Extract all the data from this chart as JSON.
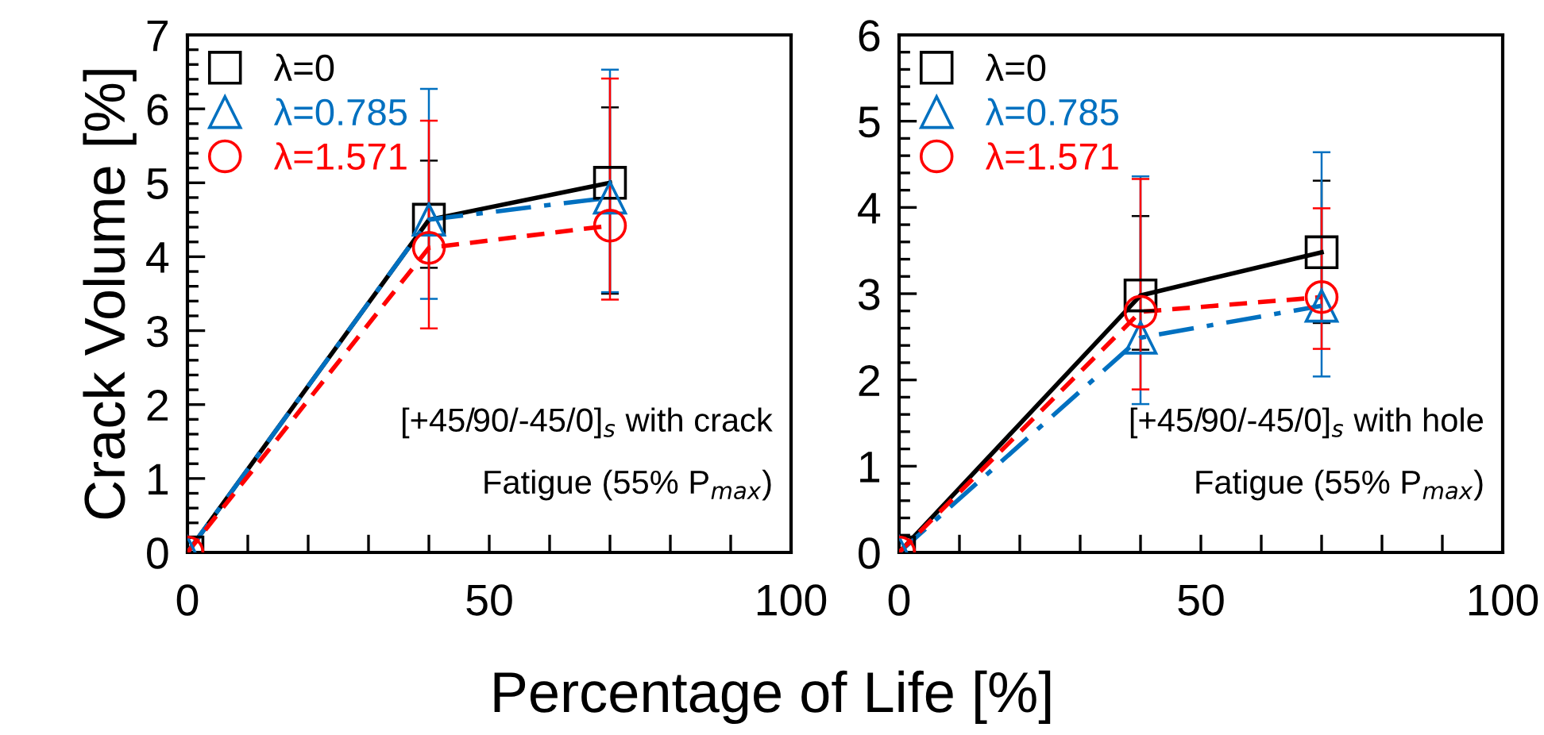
{
  "chart_data": [
    {
      "type": "line",
      "xlabel": "Percentage of Life [%]",
      "ylabel": "Crack Volume [%]",
      "x": [
        0,
        40,
        70
      ],
      "xlim": [
        0,
        100
      ],
      "xticks": [
        0,
        {
          "value": 10,
          "label": null
        },
        {
          "value": 20,
          "label": null
        },
        {
          "value": 30,
          "label": null
        },
        {
          "value": 40,
          "label": null
        },
        50,
        {
          "value": 60,
          "label": null
        },
        {
          "value": 70,
          "label": null
        },
        {
          "value": 80,
          "label": null
        },
        {
          "value": 90,
          "label": null
        },
        100
      ],
      "ylim": [
        0,
        7
      ],
      "yticks": [
        0,
        1,
        2,
        3,
        4,
        5,
        6,
        7
      ],
      "legend": "top left",
      "grid": false,
      "annotations": [
        "[+45/90/-45/0]$_{s}$ with crack",
        "Fatigue (55% P$_{max}$)"
      ],
      "series": [
        {
          "name": "λ=0",
          "color": "#000000",
          "marker": "square",
          "line_style": "solid",
          "values": [
            0,
            4.5,
            5.0
          ],
          "errors": [
            null,
            [
              3.85,
              5.3
            ],
            [
              3.5,
              6.02
            ]
          ]
        },
        {
          "name": "λ=0.785",
          "color": "#0070c0",
          "marker": "triangle",
          "line_style": "dashdot",
          "values": [
            0,
            4.5,
            4.8
          ],
          "errors": [
            null,
            [
              3.43,
              6.27
            ],
            [
              3.52,
              6.53
            ]
          ]
        },
        {
          "name": "λ=1.571",
          "color": "#ff0000",
          "marker": "circle",
          "line_style": "dashed",
          "values": [
            0,
            4.12,
            4.42
          ],
          "errors": [
            null,
            [
              3.03,
              5.84
            ],
            [
              3.42,
              6.41
            ]
          ]
        }
      ]
    },
    {
      "type": "line",
      "x": [
        0,
        40,
        70
      ],
      "xlim": [
        0,
        100
      ],
      "xticks": [
        0,
        {
          "value": 10,
          "label": null
        },
        {
          "value": 20,
          "label": null
        },
        {
          "value": 30,
          "label": null
        },
        {
          "value": 40,
          "label": null
        },
        50,
        {
          "value": 60,
          "label": null
        },
        {
          "value": 70,
          "label": null
        },
        {
          "value": 80,
          "label": null
        },
        {
          "value": 90,
          "label": null
        },
        100
      ],
      "ylim": [
        0,
        6
      ],
      "yticks": [
        0,
        1,
        2,
        3,
        4,
        5,
        6
      ],
      "legend": "top left",
      "grid": false,
      "annotations": [
        "[+45/90/-45/0]$_{s}$ with hole",
        "Fatigue (55% P$_{max}$)"
      ],
      "series": [
        {
          "name": "λ=0",
          "color": "#000000",
          "marker": "square",
          "line_style": "solid",
          "values": [
            0,
            2.98,
            3.48
          ],
          "errors": [
            null,
            [
              2.35,
              3.9
            ],
            [
              2.66,
              4.31
            ]
          ]
        },
        {
          "name": "λ=0.785",
          "color": "#0070c0",
          "marker": "triangle",
          "line_style": "dashdot",
          "values": [
            0,
            2.49,
            2.86
          ],
          "errors": [
            null,
            [
              1.72,
              4.36
            ],
            [
              2.04,
              4.64
            ]
          ]
        },
        {
          "name": "λ=1.571",
          "color": "#ff0000",
          "marker": "circle",
          "line_style": "dashed",
          "values": [
            0,
            2.79,
            2.96
          ],
          "errors": [
            null,
            [
              1.89,
              4.33
            ],
            [
              2.36,
              3.99
            ]
          ]
        }
      ]
    }
  ]
}
